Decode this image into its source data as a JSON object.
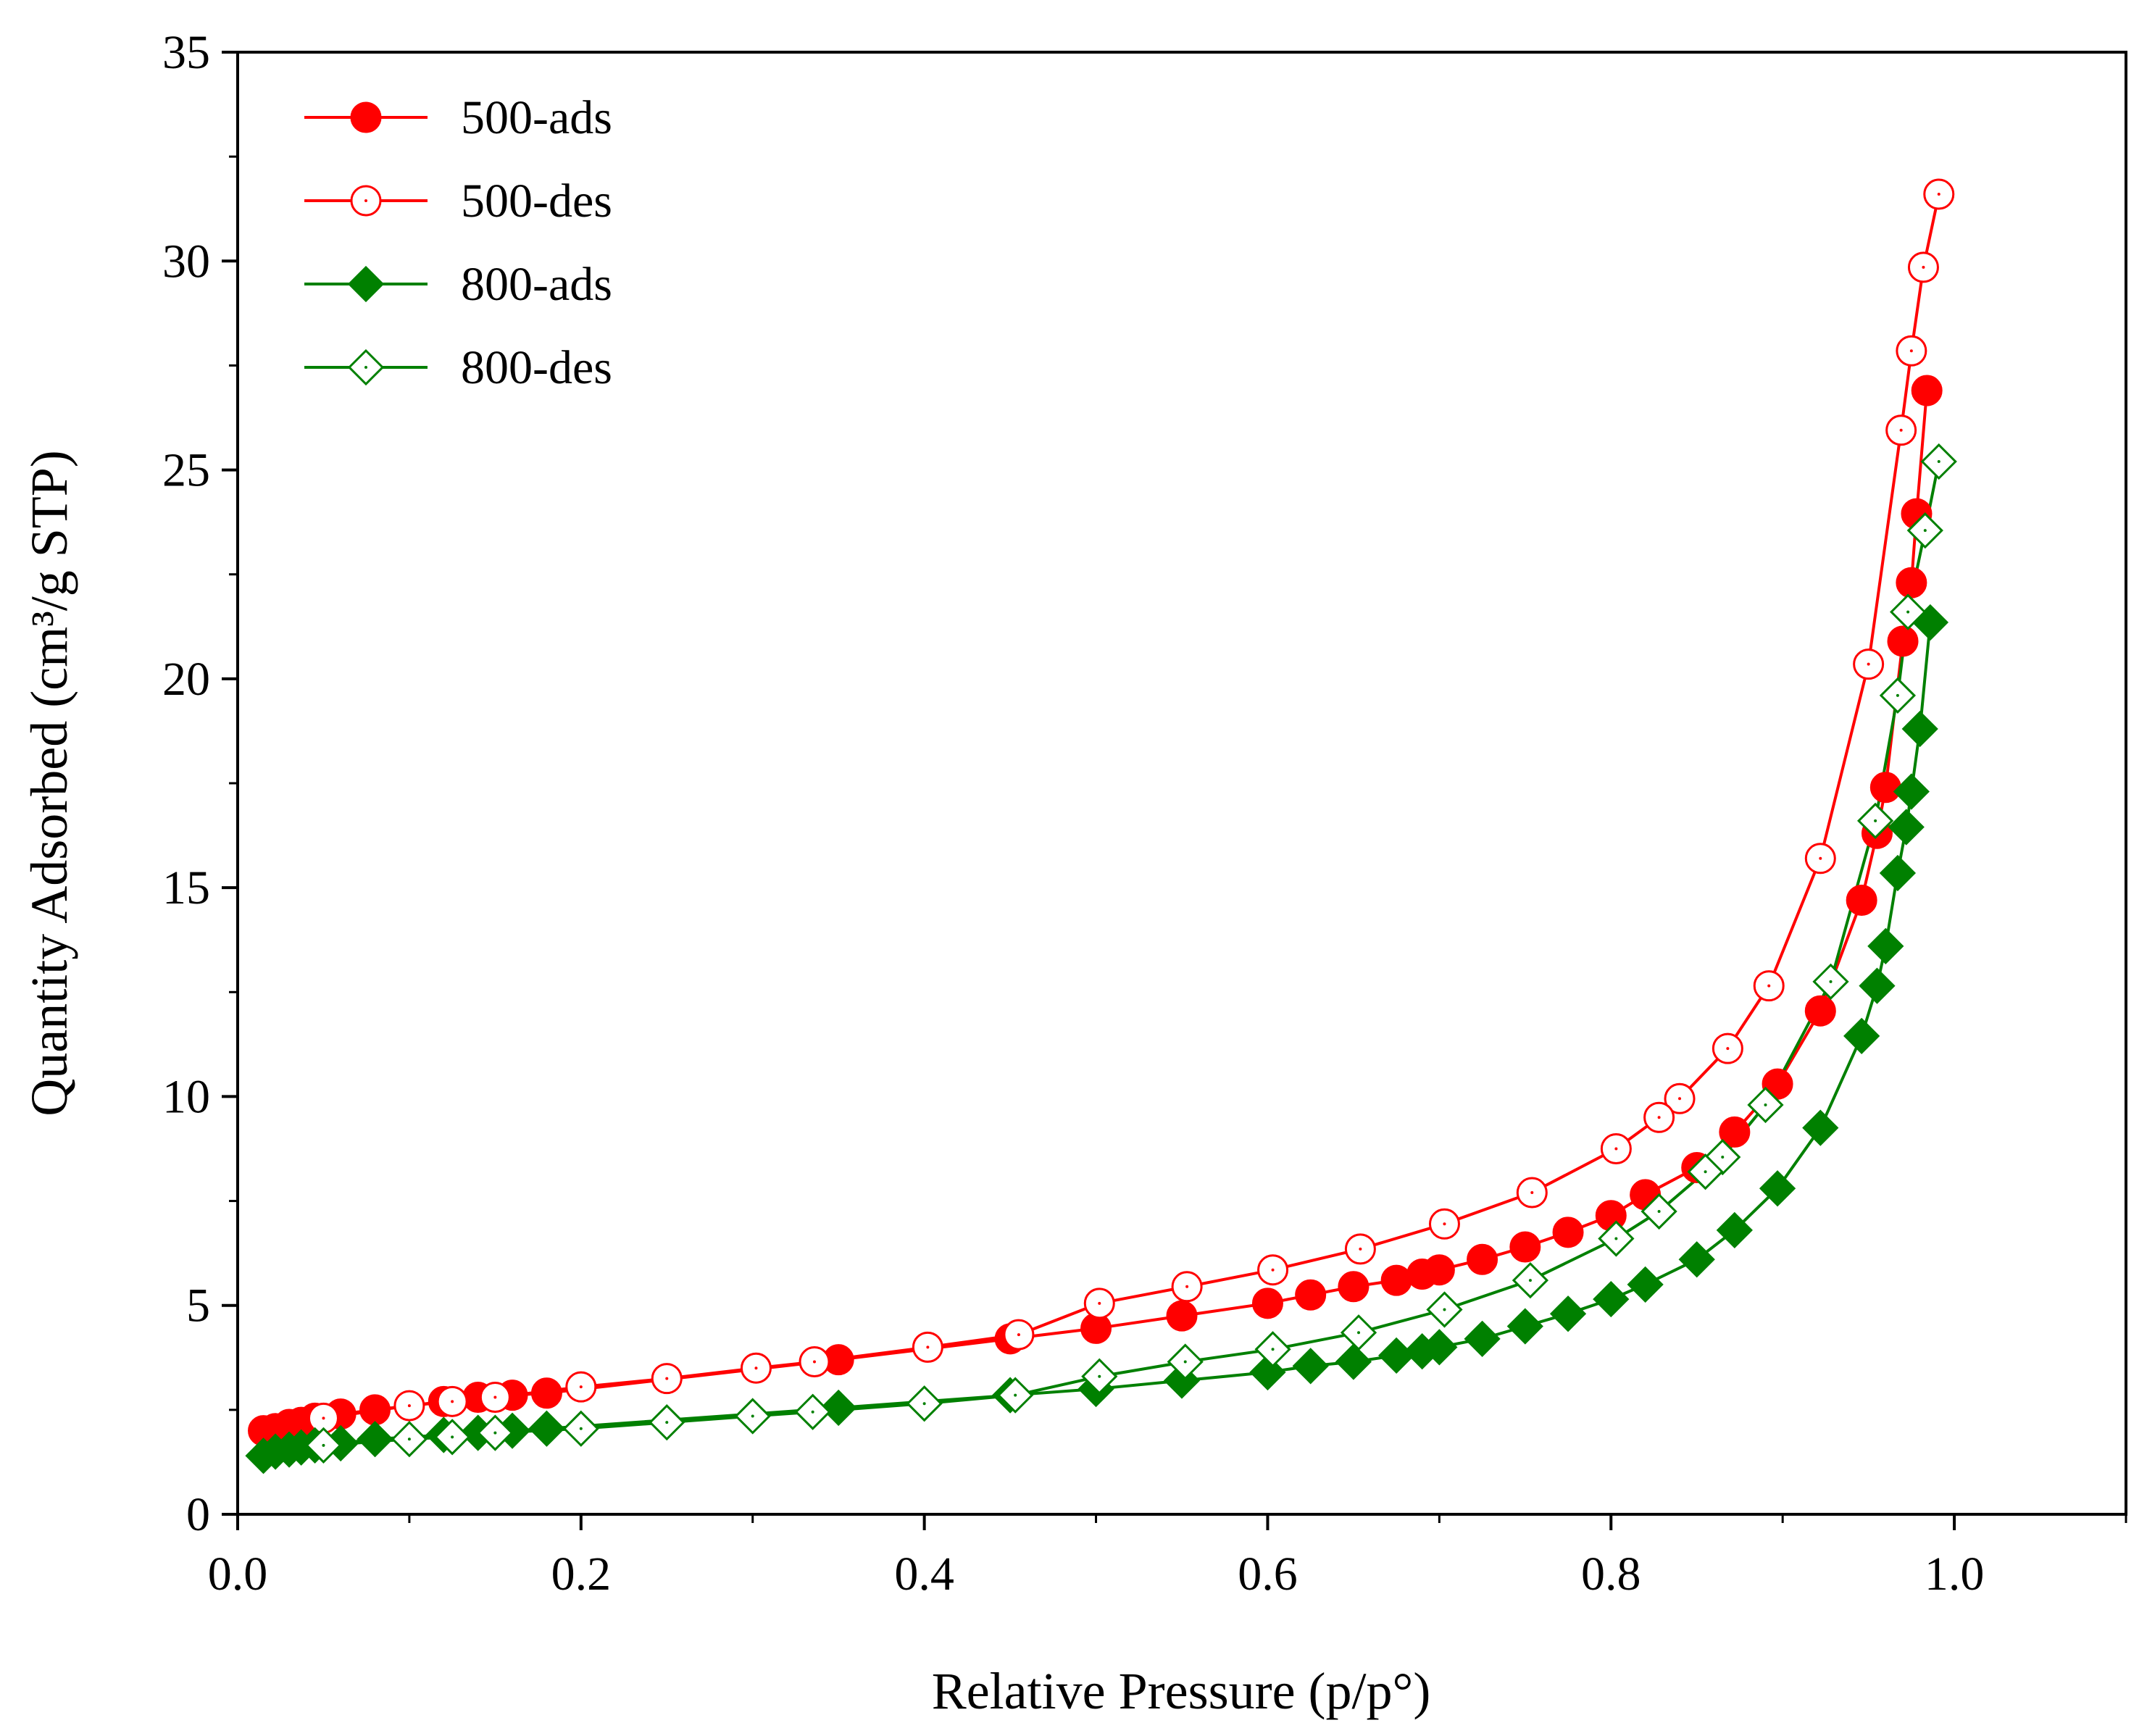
{
  "chart_data": {
    "type": "line",
    "title": "",
    "xlabel": "Relative Pressure (p/p°)",
    "ylabel": "Quantity Adsorbed (cm³/g STP)",
    "xlim": [
      0,
      1.1
    ],
    "ylim": [
      0,
      35
    ],
    "xticks": [
      0.0,
      0.2,
      0.4,
      0.6,
      0.8,
      1.0
    ],
    "xtick_labels": [
      "0.0",
      "0.2",
      "0.4",
      "0.6",
      "0.8",
      "1.0"
    ],
    "yticks": [
      0,
      5,
      10,
      15,
      20,
      25,
      30,
      35
    ],
    "ytick_labels": [
      "0",
      "5",
      "10",
      "15",
      "20",
      "25",
      "30",
      "35"
    ],
    "grid": false,
    "legend_position": "top-left",
    "series": [
      {
        "name": "500-ads",
        "color": "#ff0000",
        "marker": "circle",
        "filled": true,
        "x": [
          0.015,
          0.022,
          0.03,
          0.037,
          0.045,
          0.06,
          0.08,
          0.12,
          0.14,
          0.16,
          0.18,
          0.35,
          0.45,
          0.5,
          0.55,
          0.6,
          0.625,
          0.65,
          0.675,
          0.69,
          0.7,
          0.725,
          0.75,
          0.775,
          0.8,
          0.82,
          0.85,
          0.872,
          0.897,
          0.922,
          0.946,
          0.955,
          0.96,
          0.97,
          0.975,
          0.978,
          0.984
        ],
        "y": [
          2.0,
          2.05,
          2.15,
          2.2,
          2.3,
          2.4,
          2.5,
          2.7,
          2.8,
          2.85,
          2.9,
          3.7,
          4.2,
          4.45,
          4.75,
          5.05,
          5.25,
          5.45,
          5.6,
          5.75,
          5.85,
          6.1,
          6.4,
          6.75,
          7.15,
          7.65,
          8.3,
          9.15,
          10.3,
          12.05,
          14.7,
          16.3,
          17.4,
          20.9,
          22.3,
          23.95,
          26.9
        ]
      },
      {
        "name": "500-des",
        "color": "#ff0000",
        "marker": "circle",
        "filled": false,
        "x": [
          0.991,
          0.982,
          0.975,
          0.969,
          0.95,
          0.922,
          0.892,
          0.868,
          0.84,
          0.828,
          0.803,
          0.754,
          0.703,
          0.654,
          0.603,
          0.553,
          0.502,
          0.455,
          0.402,
          0.336,
          0.302,
          0.25,
          0.2,
          0.15,
          0.125,
          0.1,
          0.05
        ],
        "y": [
          31.6,
          29.85,
          27.85,
          25.95,
          20.35,
          15.7,
          12.65,
          11.15,
          9.95,
          9.5,
          8.75,
          7.7,
          6.95,
          6.35,
          5.85,
          5.45,
          5.05,
          4.3,
          4.0,
          3.65,
          3.5,
          3.25,
          3.05,
          2.8,
          2.7,
          2.6,
          2.3
        ]
      },
      {
        "name": "800-ads",
        "color": "#008000",
        "marker": "diamond",
        "filled": true,
        "x": [
          0.015,
          0.022,
          0.03,
          0.037,
          0.045,
          0.06,
          0.08,
          0.12,
          0.14,
          0.16,
          0.18,
          0.35,
          0.45,
          0.5,
          0.55,
          0.6,
          0.625,
          0.65,
          0.675,
          0.69,
          0.7,
          0.725,
          0.75,
          0.775,
          0.8,
          0.82,
          0.85,
          0.872,
          0.897,
          0.922,
          0.946,
          0.955,
          0.96,
          0.967,
          0.972,
          0.975,
          0.98,
          0.986
        ],
        "y": [
          1.4,
          1.5,
          1.55,
          1.6,
          1.65,
          1.7,
          1.8,
          1.9,
          1.95,
          2.0,
          2.05,
          2.55,
          2.85,
          3.0,
          3.2,
          3.4,
          3.55,
          3.65,
          3.8,
          3.9,
          4.0,
          4.2,
          4.5,
          4.8,
          5.15,
          5.5,
          6.1,
          6.8,
          7.8,
          9.25,
          11.45,
          12.65,
          13.6,
          15.35,
          16.45,
          17.3,
          18.8,
          21.35
        ]
      },
      {
        "name": "800-des",
        "color": "#008000",
        "marker": "diamond",
        "filled": false,
        "x": [
          0.991,
          0.983,
          0.973,
          0.967,
          0.954,
          0.928,
          0.89,
          0.865,
          0.855,
          0.828,
          0.803,
          0.753,
          0.703,
          0.653,
          0.603,
          0.552,
          0.502,
          0.453,
          0.4,
          0.335,
          0.3,
          0.25,
          0.2,
          0.15,
          0.125,
          0.1,
          0.05
        ],
        "y": [
          25.2,
          23.55,
          21.6,
          19.6,
          16.6,
          12.75,
          9.8,
          8.55,
          8.2,
          7.25,
          6.6,
          5.6,
          4.9,
          4.35,
          3.95,
          3.65,
          3.3,
          2.85,
          2.65,
          2.45,
          2.35,
          2.2,
          2.05,
          1.95,
          1.85,
          1.8,
          1.65
        ]
      }
    ]
  }
}
